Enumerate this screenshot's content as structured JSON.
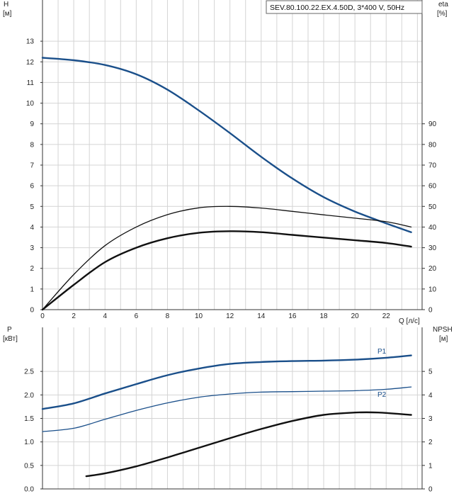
{
  "chart_data": [
    {
      "type": "line",
      "title": "SEV.80.100.22.EX.4.50D, 3*400 V, 50Hz",
      "left_axis": {
        "label_line1": "H",
        "label_line2": "[м]",
        "ylim": [
          0,
          14
        ],
        "ticks": [
          "0",
          "1",
          "2",
          "3",
          "4",
          "5",
          "6",
          "7",
          "8",
          "9",
          "10",
          "11",
          "12",
          "13"
        ]
      },
      "right_axis": {
        "label_line1": "eta",
        "label_line2": "[%]",
        "ylim": [
          0,
          140
        ],
        "ticks": [
          "0",
          "10",
          "20",
          "30",
          "40",
          "50",
          "60",
          "70",
          "80",
          "90"
        ]
      },
      "x_axis": {
        "label": "Q [л/с]",
        "xlim": [
          0,
          24.3
        ],
        "ticks": [
          "0",
          "2",
          "4",
          "6",
          "8",
          "10",
          "12",
          "14",
          "16",
          "18",
          "20",
          "22"
        ]
      },
      "grid": true,
      "series": [
        {
          "key": "H",
          "axis": "left",
          "color": "#1a4f8a",
          "x": [
            0,
            2,
            4,
            6,
            8,
            10,
            12,
            14,
            16,
            18,
            20,
            22,
            23.6
          ],
          "y": [
            12.2,
            12.08,
            11.85,
            11.4,
            10.65,
            9.65,
            8.55,
            7.4,
            6.35,
            5.45,
            4.75,
            4.18,
            3.75
          ]
        },
        {
          "key": "eta_thin",
          "axis": "right",
          "color": "#111111",
          "x": [
            0,
            2,
            4,
            6,
            8,
            10,
            12,
            14,
            16,
            18,
            20,
            22,
            23.6
          ],
          "y": [
            0,
            17,
            31,
            40,
            46,
            49.3,
            50,
            49.2,
            47.6,
            45.9,
            44.3,
            42.6,
            40
          ]
        },
        {
          "key": "eta_thick",
          "axis": "right",
          "color": "#111111",
          "x": [
            0,
            2,
            4,
            6,
            8,
            10,
            12,
            14,
            16,
            18,
            20,
            22,
            23.6
          ],
          "y": [
            0,
            12,
            23,
            30,
            34.6,
            37.2,
            38,
            37.5,
            36.2,
            34.9,
            33.6,
            32.3,
            30.5
          ]
        }
      ]
    },
    {
      "type": "line",
      "left_axis": {
        "label_line1": "P",
        "label_line2": "[кВт]",
        "ylim": [
          0,
          3.0
        ],
        "ticks": [
          "0.0",
          "0.5",
          "1.0",
          "1.5",
          "2.0",
          "2.5"
        ]
      },
      "right_axis": {
        "label_line1": "NPSH",
        "label_line2": "[м]",
        "ylim": [
          0,
          6
        ],
        "ticks": [
          "0",
          "1",
          "2",
          "3",
          "4",
          "5"
        ]
      },
      "xlim": [
        0,
        24.3
      ],
      "grid": true,
      "series": [
        {
          "name": "P1",
          "axis": "left",
          "color": "#1a4f8a",
          "x": [
            0,
            2,
            4,
            6,
            8,
            10,
            12,
            14,
            16,
            18,
            20,
            22,
            23.6
          ],
          "y": [
            1.7,
            1.82,
            2.03,
            2.23,
            2.42,
            2.56,
            2.66,
            2.7,
            2.72,
            2.73,
            2.75,
            2.79,
            2.84
          ]
        },
        {
          "name": "P2",
          "axis": "left",
          "color": "#1a4f8a",
          "x": [
            0,
            2,
            4,
            6,
            8,
            10,
            12,
            14,
            16,
            18,
            20,
            22,
            23.6
          ],
          "y": [
            1.22,
            1.29,
            1.48,
            1.67,
            1.83,
            1.95,
            2.02,
            2.06,
            2.07,
            2.08,
            2.09,
            2.12,
            2.17
          ]
        },
        {
          "key": "NPSH",
          "axis": "right",
          "color": "#111111",
          "x": [
            2.8,
            4,
            6,
            8,
            10,
            12,
            14,
            16,
            18,
            20,
            21.5,
            23.6
          ],
          "y": [
            0.54,
            0.66,
            0.96,
            1.34,
            1.75,
            2.16,
            2.55,
            2.89,
            3.15,
            3.25,
            3.25,
            3.15
          ]
        }
      ]
    }
  ]
}
